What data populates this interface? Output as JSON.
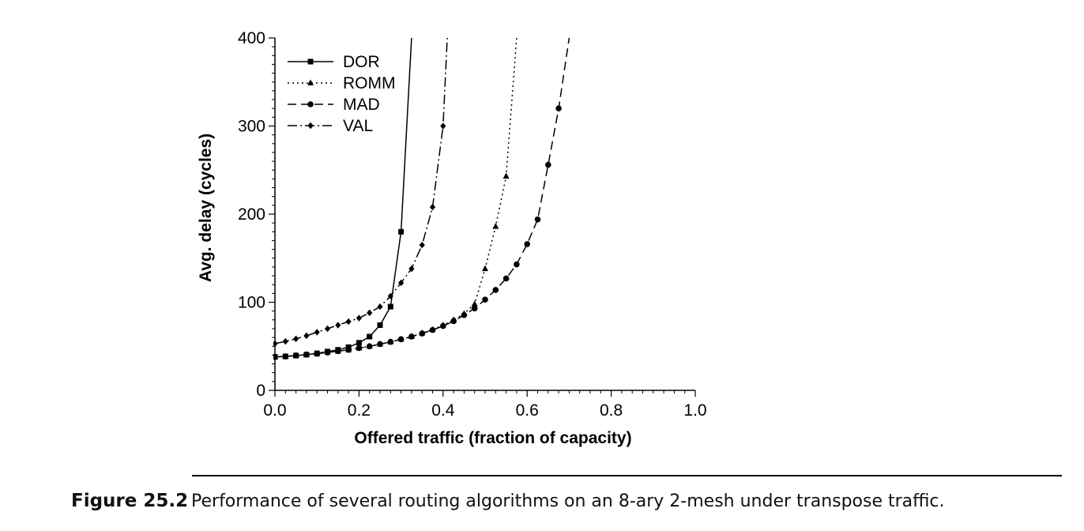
{
  "chart_data": {
    "type": "line",
    "xlabel": "Offered traffic (fraction of capacity)",
    "ylabel": "Avg. delay (cycles)",
    "xlim": [
      0.0,
      1.0
    ],
    "ylim": [
      0,
      400
    ],
    "xticks": [
      0.0,
      0.2,
      0.4,
      0.6,
      0.8,
      1.0
    ],
    "xtick_labels": [
      "0.0",
      "0.2",
      "0.4",
      "0.6",
      "0.8",
      "1.0"
    ],
    "yticks": [
      0,
      100,
      200,
      300,
      400
    ],
    "ytick_labels": [
      "0",
      "100",
      "200",
      "300",
      "400"
    ],
    "grid": false,
    "legend_position": "top-left",
    "series": [
      {
        "name": "DOR",
        "line_style": "solid",
        "marker": "square",
        "points": [
          [
            0.0,
            38
          ],
          [
            0.025,
            38.5
          ],
          [
            0.05,
            39.5
          ],
          [
            0.075,
            40.5
          ],
          [
            0.1,
            42
          ],
          [
            0.125,
            44
          ],
          [
            0.15,
            46
          ],
          [
            0.175,
            49
          ],
          [
            0.2,
            54
          ],
          [
            0.225,
            61
          ],
          [
            0.25,
            74
          ],
          [
            0.275,
            95
          ],
          [
            0.3,
            180
          ],
          [
            0.325,
            400
          ]
        ],
        "markers_until": 0.3
      },
      {
        "name": "ROMM",
        "line_style": "dotted",
        "marker": "triangle",
        "points": [
          [
            0.0,
            38
          ],
          [
            0.025,
            38.5
          ],
          [
            0.05,
            39.5
          ],
          [
            0.075,
            40.5
          ],
          [
            0.1,
            41.5
          ],
          [
            0.125,
            43
          ],
          [
            0.15,
            44.5
          ],
          [
            0.175,
            46
          ],
          [
            0.2,
            48
          ],
          [
            0.225,
            50
          ],
          [
            0.25,
            52.5
          ],
          [
            0.275,
            55
          ],
          [
            0.3,
            58
          ],
          [
            0.325,
            61
          ],
          [
            0.35,
            65
          ],
          [
            0.375,
            69
          ],
          [
            0.4,
            74
          ],
          [
            0.425,
            80
          ],
          [
            0.45,
            87
          ],
          [
            0.475,
            98
          ],
          [
            0.5,
            138
          ],
          [
            0.525,
            186
          ],
          [
            0.55,
            243
          ],
          [
            0.575,
            400
          ]
        ],
        "markers_until": 0.55
      },
      {
        "name": "MAD",
        "line_style": "dashed",
        "marker": "circle",
        "points": [
          [
            0.0,
            38
          ],
          [
            0.025,
            38.5
          ],
          [
            0.05,
            39.5
          ],
          [
            0.075,
            40.5
          ],
          [
            0.1,
            41.5
          ],
          [
            0.125,
            43
          ],
          [
            0.15,
            44.5
          ],
          [
            0.175,
            46
          ],
          [
            0.2,
            48
          ],
          [
            0.225,
            50
          ],
          [
            0.25,
            52.5
          ],
          [
            0.275,
            55
          ],
          [
            0.3,
            58
          ],
          [
            0.325,
            61
          ],
          [
            0.35,
            64.5
          ],
          [
            0.375,
            68.5
          ],
          [
            0.4,
            73
          ],
          [
            0.425,
            78.5
          ],
          [
            0.45,
            85.5
          ],
          [
            0.475,
            93
          ],
          [
            0.5,
            103
          ],
          [
            0.525,
            114
          ],
          [
            0.55,
            127
          ],
          [
            0.575,
            143
          ],
          [
            0.6,
            166
          ],
          [
            0.625,
            194
          ],
          [
            0.65,
            256
          ],
          [
            0.675,
            320
          ],
          [
            0.7,
            400
          ]
        ],
        "markers_until": 0.675
      },
      {
        "name": "VAL",
        "line_style": "dash-dot",
        "marker": "diamond",
        "points": [
          [
            0.0,
            53
          ],
          [
            0.025,
            55.5
          ],
          [
            0.05,
            58.5
          ],
          [
            0.075,
            62
          ],
          [
            0.1,
            66
          ],
          [
            0.125,
            70
          ],
          [
            0.15,
            74
          ],
          [
            0.175,
            78
          ],
          [
            0.2,
            82
          ],
          [
            0.225,
            88
          ],
          [
            0.25,
            95
          ],
          [
            0.275,
            107
          ],
          [
            0.3,
            122
          ],
          [
            0.325,
            138
          ],
          [
            0.35,
            165
          ],
          [
            0.375,
            208
          ],
          [
            0.4,
            300
          ],
          [
            0.41,
            400
          ]
        ],
        "markers_until": 0.4
      }
    ]
  },
  "caption": {
    "figure_number": "Figure 25.2",
    "text": "Performance of several routing algorithms on an 8-ary 2-mesh under transpose traffic."
  }
}
